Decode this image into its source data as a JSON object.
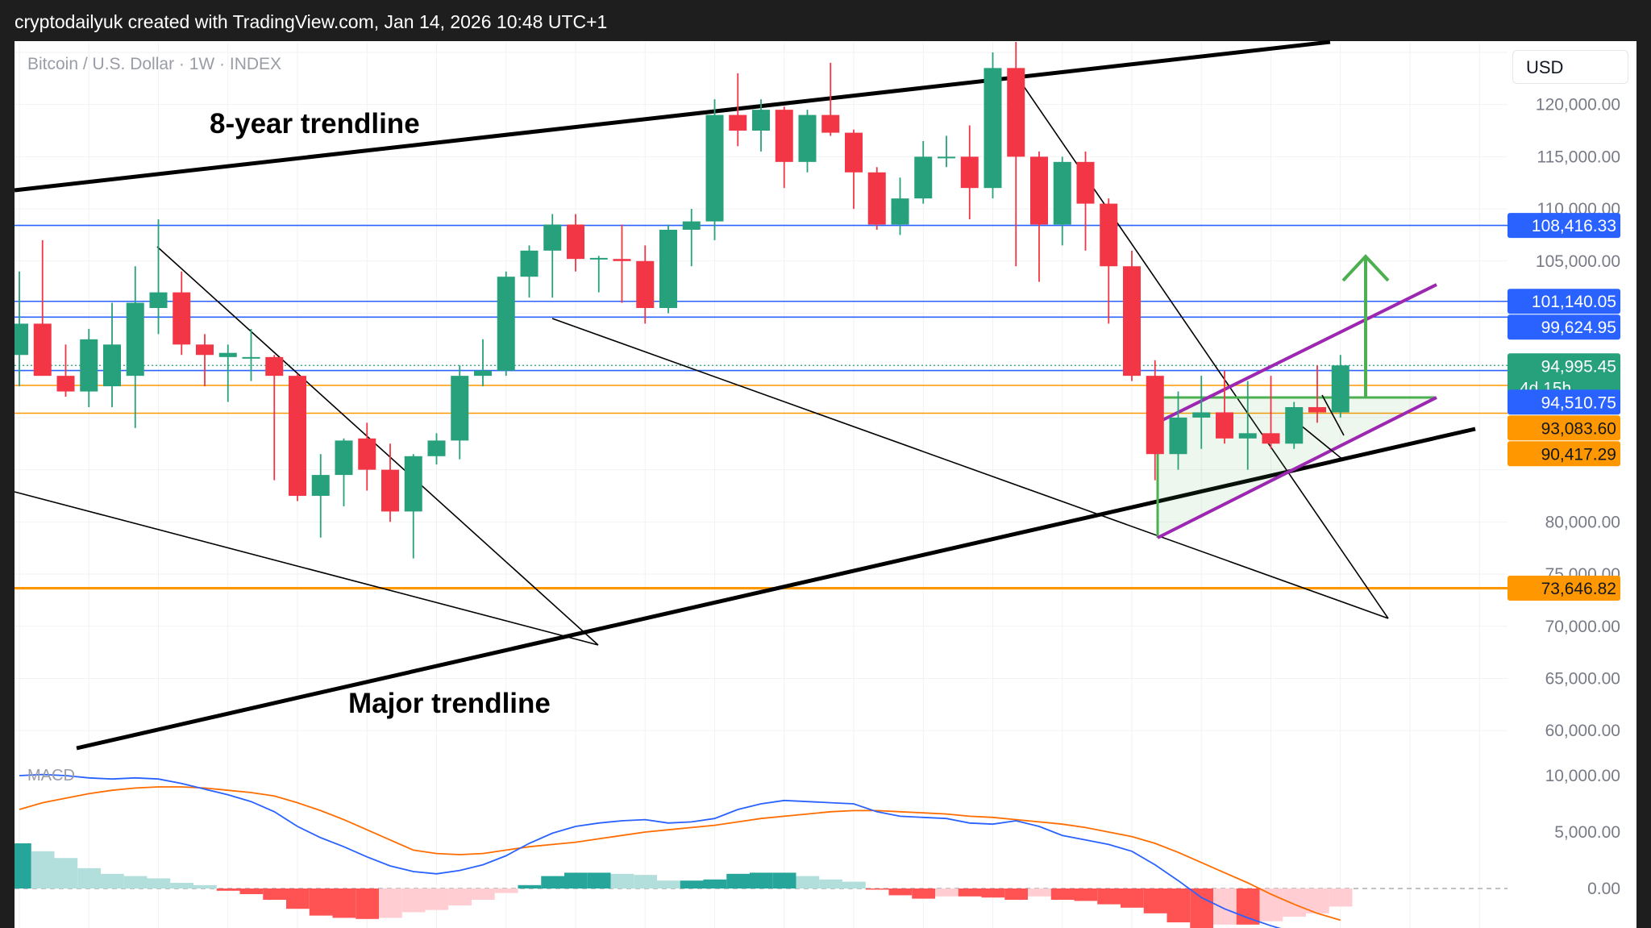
{
  "header": {
    "caption": "cryptodailyuk created with TradingView.com, Jan 14, 2026 10:48 UTC+1"
  },
  "symbol": {
    "label": "Bitcoin / U.S. Dollar · 1W · INDEX"
  },
  "currency": {
    "label": "USD"
  },
  "annotations": {
    "top_trendline": "8-year trendline",
    "bottom_trendline": "Major trendline"
  },
  "indicator": {
    "label": "MACD"
  },
  "colors": {
    "up": "#26a17b",
    "down": "#f23645",
    "blue_line": "#2962ff",
    "orange_line": "#ff9800",
    "blue_badge": "#2962ff",
    "green_badge": "#26a17b",
    "orange_badge": "#ff9800",
    "channel": "#9c27b0",
    "arrow": "#4caf50",
    "macd_line": "#2962ff",
    "signal_line": "#ff6d00"
  },
  "chart_data": {
    "type": "candlestick",
    "ylim": [
      57000,
      126000
    ],
    "price_ticks": [
      "120,000.00",
      "115,000.00",
      "110,000.00",
      "105,000.00",
      "80,000.00",
      "75,000.00",
      "70,000.00",
      "65,000.00",
      "60,000.00"
    ],
    "price_tick_values": [
      120000,
      115000,
      110000,
      105000,
      80000,
      75000,
      70000,
      65000,
      60000
    ],
    "price_labels": [
      {
        "text": "108,416.33",
        "value": 108416.33,
        "kind": "blue"
      },
      {
        "text": "101,140.05",
        "value": 101140.05,
        "kind": "blue"
      },
      {
        "text": "99,624.95",
        "value": 99624.95,
        "kind": "blue"
      },
      {
        "text": "94,995.45",
        "sub": "4d 15h",
        "value": 94995.45,
        "kind": "green"
      },
      {
        "text": "94,510.75",
        "value": 94510.75,
        "kind": "blue"
      },
      {
        "text": "93,083.60",
        "value": 93083.6,
        "kind": "orange"
      },
      {
        "text": "90,417.29",
        "value": 90417.29,
        "kind": "orange"
      },
      {
        "text": "73,646.82",
        "value": 73646.82,
        "kind": "orange"
      }
    ],
    "hlines": [
      {
        "value": 108416.33,
        "kind": "blue"
      },
      {
        "value": 101140.05,
        "kind": "blue"
      },
      {
        "value": 99624.95,
        "kind": "blue"
      },
      {
        "value": 94510.75,
        "kind": "blue"
      },
      {
        "value": 93083.6,
        "kind": "orange"
      },
      {
        "value": 90417.29,
        "kind": "orange"
      },
      {
        "value": 73646.82,
        "kind": "orange_thick"
      }
    ],
    "last_price": 94995.45,
    "candles": [
      {
        "o": 96000,
        "h": 104000,
        "l": 93000,
        "c": 99000
      },
      {
        "o": 99000,
        "h": 107000,
        "l": 94000,
        "c": 94000
      },
      {
        "o": 94000,
        "h": 97000,
        "l": 92000,
        "c": 92500
      },
      {
        "o": 92500,
        "h": 98500,
        "l": 91000,
        "c": 97500
      },
      {
        "o": 93000,
        "h": 101000,
        "l": 91000,
        "c": 97000
      },
      {
        "o": 94000,
        "h": 104500,
        "l": 89000,
        "c": 101000
      },
      {
        "o": 100500,
        "h": 109000,
        "l": 98000,
        "c": 102000
      },
      {
        "o": 102000,
        "h": 104000,
        "l": 96000,
        "c": 97000
      },
      {
        "o": 97000,
        "h": 98000,
        "l": 93000,
        "c": 96000
      },
      {
        "o": 95800,
        "h": 97000,
        "l": 91500,
        "c": 96200
      },
      {
        "o": 95800,
        "h": 98500,
        "l": 93500,
        "c": 95800
      },
      {
        "o": 95800,
        "h": 96000,
        "l": 84000,
        "c": 94000
      },
      {
        "o": 94000,
        "h": 94200,
        "l": 82000,
        "c": 82500
      },
      {
        "o": 82500,
        "h": 86500,
        "l": 78500,
        "c": 84500
      },
      {
        "o": 84500,
        "h": 88000,
        "l": 81500,
        "c": 87800
      },
      {
        "o": 88000,
        "h": 89500,
        "l": 83000,
        "c": 85000
      },
      {
        "o": 85000,
        "h": 87500,
        "l": 80000,
        "c": 81000
      },
      {
        "o": 81000,
        "h": 86500,
        "l": 76500,
        "c": 86300
      },
      {
        "o": 86300,
        "h": 88500,
        "l": 85500,
        "c": 87800
      },
      {
        "o": 87800,
        "h": 95000,
        "l": 86000,
        "c": 94000
      },
      {
        "o": 94000,
        "h": 97500,
        "l": 93000,
        "c": 94500
      },
      {
        "o": 94500,
        "h": 104000,
        "l": 94000,
        "c": 103500
      },
      {
        "o": 103500,
        "h": 106500,
        "l": 101500,
        "c": 106000
      },
      {
        "o": 106000,
        "h": 109500,
        "l": 101500,
        "c": 108500
      },
      {
        "o": 108500,
        "h": 109500,
        "l": 104000,
        "c": 105200
      },
      {
        "o": 105200,
        "h": 105500,
        "l": 102000,
        "c": 105300
      },
      {
        "o": 105200,
        "h": 108500,
        "l": 101000,
        "c": 105000
      },
      {
        "o": 105000,
        "h": 106500,
        "l": 99000,
        "c": 100500
      },
      {
        "o": 100500,
        "h": 108500,
        "l": 100000,
        "c": 108000
      },
      {
        "o": 108000,
        "h": 110000,
        "l": 104500,
        "c": 108800
      },
      {
        "o": 108800,
        "h": 120500,
        "l": 107000,
        "c": 119000
      },
      {
        "o": 119000,
        "h": 123000,
        "l": 116000,
        "c": 117500
      },
      {
        "o": 117500,
        "h": 120500,
        "l": 115500,
        "c": 119500
      },
      {
        "o": 119500,
        "h": 119800,
        "l": 112000,
        "c": 114500
      },
      {
        "o": 114500,
        "h": 119500,
        "l": 113500,
        "c": 119000
      },
      {
        "o": 119000,
        "h": 124000,
        "l": 117000,
        "c": 117300
      },
      {
        "o": 117300,
        "h": 117600,
        "l": 110000,
        "c": 113500
      },
      {
        "o": 113500,
        "h": 114000,
        "l": 108000,
        "c": 108500
      },
      {
        "o": 108500,
        "h": 113000,
        "l": 107500,
        "c": 111000
      },
      {
        "o": 111000,
        "h": 116500,
        "l": 110500,
        "c": 115000
      },
      {
        "o": 115000,
        "h": 117000,
        "l": 114000,
        "c": 115000
      },
      {
        "o": 115000,
        "h": 118000,
        "l": 109000,
        "c": 112000
      },
      {
        "o": 112000,
        "h": 125000,
        "l": 111000,
        "c": 123500
      },
      {
        "o": 123500,
        "h": 126000,
        "l": 104500,
        "c": 115000
      },
      {
        "o": 115000,
        "h": 115500,
        "l": 103000,
        "c": 108500
      },
      {
        "o": 108500,
        "h": 115000,
        "l": 106500,
        "c": 114500
      },
      {
        "o": 114500,
        "h": 115500,
        "l": 106000,
        "c": 110500
      },
      {
        "o": 110500,
        "h": 111000,
        "l": 99000,
        "c": 104500
      },
      {
        "o": 104500,
        "h": 106000,
        "l": 93500,
        "c": 94000
      },
      {
        "o": 94000,
        "h": 95500,
        "l": 84000,
        "c": 86500
      },
      {
        "o": 86500,
        "h": 92500,
        "l": 85000,
        "c": 90000
      },
      {
        "o": 90000,
        "h": 94000,
        "l": 87000,
        "c": 90500
      },
      {
        "o": 90500,
        "h": 94500,
        "l": 87500,
        "c": 88000
      },
      {
        "o": 88000,
        "h": 93500,
        "l": 85000,
        "c": 88500
      },
      {
        "o": 88500,
        "h": 94000,
        "l": 87000,
        "c": 87500
      },
      {
        "o": 87500,
        "h": 91500,
        "l": 87000,
        "c": 91000
      },
      {
        "o": 91000,
        "h": 95000,
        "l": 89500,
        "c": 90500
      },
      {
        "o": 90500,
        "h": 96000,
        "l": 90000,
        "c": 95000
      }
    ],
    "macd": {
      "label": "MACD",
      "ticks": [
        "10,000.00",
        "5,000.00",
        "0.00"
      ],
      "tick_values": [
        10000,
        5000,
        0
      ],
      "ylim": [
        -3500,
        11000
      ],
      "macd_line": [
        10000,
        10100,
        10000,
        9800,
        9700,
        9800,
        9700,
        9300,
        8800,
        8300,
        7700,
        6800,
        5500,
        4500,
        3700,
        2800,
        2000,
        1500,
        1300,
        1600,
        2100,
        2900,
        4000,
        4900,
        5500,
        5800,
        6000,
        6100,
        5800,
        5900,
        6200,
        7000,
        7500,
        7800,
        7700,
        7600,
        7500,
        6800,
        6400,
        6300,
        6200,
        5800,
        5700,
        6000,
        5500,
        4700,
        4300,
        3900,
        3300,
        2100,
        700,
        -800,
        -1800,
        -2600,
        -3300,
        -3900,
        -4500,
        -4900
      ],
      "signal_line": [
        7000,
        7600,
        8000,
        8400,
        8700,
        8900,
        9000,
        9000,
        8900,
        8700,
        8500,
        8200,
        7600,
        6900,
        6100,
        5200,
        4300,
        3400,
        3100,
        3000,
        3100,
        3400,
        3700,
        3900,
        4100,
        4400,
        4700,
        5000,
        5200,
        5400,
        5600,
        5900,
        6200,
        6400,
        6600,
        6800,
        6900,
        6900,
        6800,
        6700,
        6600,
        6400,
        6300,
        6100,
        5900,
        5700,
        5400,
        5000,
        4600,
        4000,
        3200,
        2300,
        1400,
        500,
        -500,
        -1400,
        -2200,
        -2800
      ],
      "histogram": [
        4000,
        3300,
        2700,
        1800,
        1300,
        1100,
        900,
        500,
        300,
        -200,
        -500,
        -1000,
        -1800,
        -2400,
        -2600,
        -2700,
        -2600,
        -2100,
        -1900,
        -1500,
        -1000,
        -400,
        300,
        1100,
        1400,
        1400,
        1300,
        1200,
        700,
        700,
        800,
        1300,
        1400,
        1400,
        1100,
        800,
        600,
        -100,
        -600,
        -900,
        -700,
        -700,
        -800,
        -1000,
        -700,
        -1000,
        -1100,
        -1400,
        -1700,
        -2200,
        -3000,
        -3500,
        -3200,
        -3200,
        -2900,
        -2500,
        -2200,
        -1600
      ]
    }
  }
}
